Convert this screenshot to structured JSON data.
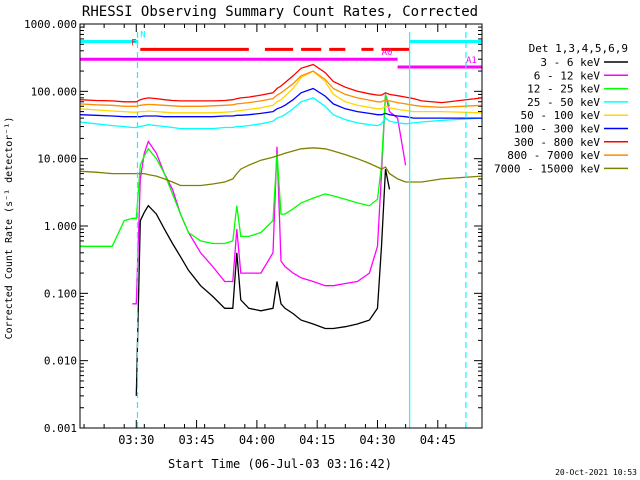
{
  "chart_data": {
    "type": "line",
    "title": "RHESSI Observing Summary Count Rates, Corrected",
    "xlabel": "Start Time (06-Jul-03 03:16:42)",
    "ylabel": "Corrected Count Rate (s⁻¹ detector⁻¹)",
    "yscale": "log",
    "ylim": [
      0.001,
      1000
    ],
    "xlim_minutes_after_0316": [
      0,
      100
    ],
    "x_tick_labels": [
      "03:30",
      "03:45",
      "04:00",
      "04:15",
      "04:30",
      "04:45"
    ],
    "x_tick_minutes": [
      14,
      29,
      44,
      59,
      74,
      89
    ],
    "y_tick_labels": [
      "1000.000",
      "100.000",
      "10.000",
      "1.000",
      "0.100",
      "0.010",
      "0.001"
    ],
    "y_tick_values": [
      1000,
      100,
      10,
      1,
      0.1,
      0.01,
      0.001
    ],
    "legend_title": "Det 1,3,4,5,6,9",
    "legend_placement": "right",
    "timestamp": "20-Oct-2021 10:53",
    "x_sample_minutes": [
      0,
      4,
      8,
      11,
      13,
      14,
      15,
      16,
      17,
      19,
      21,
      23,
      25,
      27,
      30,
      33,
      36,
      38,
      39,
      40,
      42,
      45,
      48,
      49,
      50,
      51,
      53,
      55,
      58,
      61,
      63,
      66,
      69,
      72,
      74,
      75,
      76,
      77,
      79,
      81,
      83,
      85,
      90,
      100
    ],
    "series": [
      {
        "name": "3 - 6 keV",
        "color": "#000000",
        "values": [
          null,
          null,
          null,
          null,
          null,
          0.003,
          1.2,
          1.6,
          2.0,
          1.5,
          0.9,
          0.55,
          0.35,
          0.22,
          0.13,
          0.09,
          0.06,
          0.06,
          0.4,
          0.08,
          0.06,
          0.055,
          0.06,
          0.15,
          0.07,
          0.06,
          0.05,
          0.04,
          0.035,
          0.03,
          0.03,
          0.032,
          0.035,
          0.04,
          0.06,
          0.5,
          7.0,
          3.5,
          null,
          null,
          null,
          null,
          null,
          null
        ]
      },
      {
        "name": "6 - 12 keV",
        "color": "#ff00ff",
        "values": [
          null,
          null,
          null,
          null,
          0.07,
          0.07,
          5.0,
          12.0,
          18.0,
          12.0,
          6.0,
          3.5,
          1.5,
          0.8,
          0.4,
          0.25,
          0.15,
          0.15,
          0.9,
          0.2,
          0.2,
          0.2,
          0.4,
          15.0,
          0.3,
          0.25,
          0.2,
          0.17,
          0.15,
          0.13,
          0.13,
          0.14,
          0.15,
          0.2,
          0.5,
          6.0,
          90.0,
          50.0,
          40.0,
          8.0,
          null,
          null,
          null,
          null
        ]
      },
      {
        "name": "12 - 25 keV",
        "color": "#00ff00",
        "values": [
          0.5,
          0.5,
          0.5,
          1.2,
          1.3,
          1.3,
          8.0,
          11.0,
          14.0,
          10.0,
          6.0,
          3.0,
          1.5,
          0.8,
          0.6,
          0.55,
          0.55,
          0.6,
          2.0,
          0.7,
          0.7,
          0.8,
          1.2,
          12.0,
          1.5,
          1.5,
          1.8,
          2.2,
          2.6,
          3.0,
          2.8,
          2.5,
          2.2,
          2.0,
          2.5,
          8.0,
          90.0,
          60.0,
          null,
          null,
          null,
          null,
          null,
          null
        ]
      },
      {
        "name": "25 - 50 keV",
        "color": "#00ffff",
        "values": [
          35,
          33,
          31,
          30,
          29,
          29,
          30,
          31,
          32,
          31,
          30,
          29,
          28,
          28,
          28,
          28,
          29,
          29,
          30,
          30,
          31,
          33,
          36,
          40,
          42,
          45,
          55,
          70,
          80,
          60,
          45,
          38,
          34,
          32,
          31,
          33,
          40,
          36,
          34,
          33,
          34,
          35,
          37,
          40
        ]
      },
      {
        "name": "50 - 100 keV",
        "color": "#ffd700",
        "values": [
          55,
          53,
          51,
          50,
          49,
          49,
          50,
          50,
          51,
          50,
          49,
          48,
          48,
          48,
          48,
          48,
          49,
          50,
          51,
          52,
          54,
          57,
          62,
          70,
          75,
          85,
          110,
          160,
          200,
          140,
          90,
          70,
          62,
          58,
          55,
          55,
          60,
          57,
          54,
          52,
          50,
          50,
          50,
          48
        ]
      },
      {
        "name": "100 - 300 keV",
        "color": "#0000ff",
        "values": [
          45,
          44,
          43,
          42,
          42,
          42,
          42,
          43,
          43,
          43,
          42,
          42,
          42,
          42,
          42,
          42,
          43,
          43,
          44,
          44,
          45,
          47,
          50,
          55,
          58,
          62,
          75,
          95,
          110,
          85,
          65,
          55,
          50,
          47,
          45,
          45,
          47,
          45,
          43,
          42,
          40,
          40,
          40,
          40
        ]
      },
      {
        "name": "300 - 800 keV",
        "color": "#ff0000",
        "values": [
          75,
          73,
          72,
          70,
          70,
          70,
          75,
          78,
          80,
          78,
          75,
          73,
          72,
          72,
          72,
          72,
          73,
          75,
          78,
          80,
          82,
          88,
          95,
          110,
          120,
          135,
          170,
          220,
          250,
          190,
          140,
          115,
          100,
          92,
          88,
          88,
          95,
          90,
          86,
          82,
          78,
          72,
          68,
          80
        ]
      },
      {
        "name": "800 - 7000 keV",
        "color": "#ff8c00",
        "values": [
          65,
          63,
          62,
          60,
          60,
          60,
          62,
          63,
          64,
          63,
          62,
          61,
          60,
          60,
          60,
          61,
          62,
          63,
          65,
          66,
          68,
          72,
          78,
          88,
          95,
          105,
          130,
          170,
          200,
          150,
          110,
          90,
          80,
          74,
          70,
          70,
          75,
          72,
          68,
          65,
          62,
          60,
          58,
          62
        ]
      },
      {
        "name": "7000 - 15000 keV",
        "color": "#808000",
        "values": [
          6.5,
          6.3,
          6.0,
          6.0,
          6.0,
          6.0,
          6.0,
          6.0,
          5.8,
          5.5,
          5.0,
          4.5,
          4.0,
          4.0,
          4.0,
          4.2,
          4.5,
          5.0,
          6.0,
          7.0,
          8.0,
          9.5,
          10.5,
          11.0,
          11.5,
          12.0,
          13.0,
          14.0,
          14.5,
          14.0,
          13.0,
          11.5,
          10.0,
          8.5,
          7.5,
          7.0,
          7.5,
          6.0,
          5.0,
          4.5,
          4.5,
          4.5,
          5.0,
          5.5
        ]
      }
    ],
    "flags": [
      {
        "label": "N",
        "color": "#00ffff",
        "level": 550,
        "segments": [
          [
            0,
            14.5
          ],
          [
            82,
            100
          ]
        ]
      },
      {
        "label": "F",
        "color": "#ff0000",
        "level": 420,
        "segments": [
          [
            15,
            42
          ],
          [
            46,
            53
          ],
          [
            55,
            60
          ],
          [
            62,
            66
          ],
          [
            70,
            73
          ],
          [
            75,
            82
          ]
        ]
      },
      {
        "label": "A0",
        "color": "#ff00ff",
        "level": 300,
        "segments": [
          [
            0,
            79
          ]
        ]
      },
      {
        "label": "A1",
        "color": "#ff00ff",
        "level": 230,
        "segments": [
          [
            79,
            100
          ]
        ]
      }
    ],
    "vertical_markers": [
      {
        "color": "#00ffff",
        "minute": 14.3,
        "style": "dashed"
      },
      {
        "color": "#00ffff",
        "minute": 82,
        "style": "solid"
      },
      {
        "color": "#00ffff",
        "minute": 96,
        "style": "dashed"
      }
    ]
  }
}
